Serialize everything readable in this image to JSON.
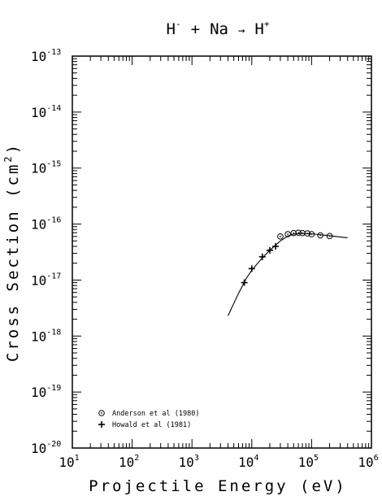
{
  "chart_data": {
    "type": "scatter",
    "title": {
      "a": "H",
      "a_sup": "-",
      "op1": "+",
      "b": "Na",
      "arrow": "→",
      "c": "H",
      "c_sup": "+"
    },
    "xlabel": "Projectile Energy (eV)",
    "ylabel": "Cross Section (cm",
    "ylabel_sup": "2",
    "ylabel_close": ")",
    "x_scale": "log",
    "y_scale": "log",
    "xlim": [
      10,
      1000000
    ],
    "ylim": [
      1e-20,
      1e-13
    ],
    "x_ticks": [
      {
        "base": "10",
        "exp": "1",
        "value": 10
      },
      {
        "base": "10",
        "exp": "2",
        "value": 100
      },
      {
        "base": "10",
        "exp": "3",
        "value": 1000
      },
      {
        "base": "10",
        "exp": "4",
        "value": 10000
      },
      {
        "base": "10",
        "exp": "5",
        "value": 100000
      },
      {
        "base": "10",
        "exp": "6",
        "value": 1000000
      }
    ],
    "y_ticks": [
      {
        "base": "10",
        "exp": "-20",
        "value": 1e-20
      },
      {
        "base": "10",
        "exp": "-19",
        "value": 1e-19
      },
      {
        "base": "10",
        "exp": "-18",
        "value": 1e-18
      },
      {
        "base": "10",
        "exp": "-17",
        "value": 1e-17
      },
      {
        "base": "10",
        "exp": "-16",
        "value": 1e-16
      },
      {
        "base": "10",
        "exp": "-15",
        "value": 1e-15
      },
      {
        "base": "10",
        "exp": "-14",
        "value": 1e-14
      },
      {
        "base": "10",
        "exp": "-13",
        "value": 1e-13
      }
    ],
    "legend_position": "bottom-left",
    "series": [
      {
        "name": "Anderson et al (1980)",
        "marker": "circle-dot",
        "x": [
          30000,
          40000,
          50000,
          60000,
          70000,
          85000,
          100000,
          140000,
          200000
        ],
        "y": [
          6e-17,
          6.6e-17,
          6.9e-17,
          7e-17,
          6.9e-17,
          6.8e-17,
          6.6e-17,
          6.3e-17,
          6.1e-17
        ]
      },
      {
        "name": "Howald et al (1981)",
        "marker": "cross",
        "x": [
          7500,
          10000,
          15000,
          20000,
          25000
        ],
        "y": [
          9e-18,
          1.6e-17,
          2.6e-17,
          3.4e-17,
          4e-17
        ]
      },
      {
        "name": "",
        "marker": "line",
        "x": [
          4000,
          6000,
          8000,
          10000,
          15000,
          20000,
          30000,
          40000,
          50000,
          70000,
          100000,
          200000,
          400000
        ],
        "y": [
          2.3e-18,
          5.8e-18,
          1.05e-17,
          1.5e-17,
          2.5e-17,
          3.4e-17,
          5e-17,
          6.1e-17,
          6.6e-17,
          6.8e-17,
          6.7e-17,
          6.2e-17,
          5.7e-17
        ]
      }
    ]
  }
}
